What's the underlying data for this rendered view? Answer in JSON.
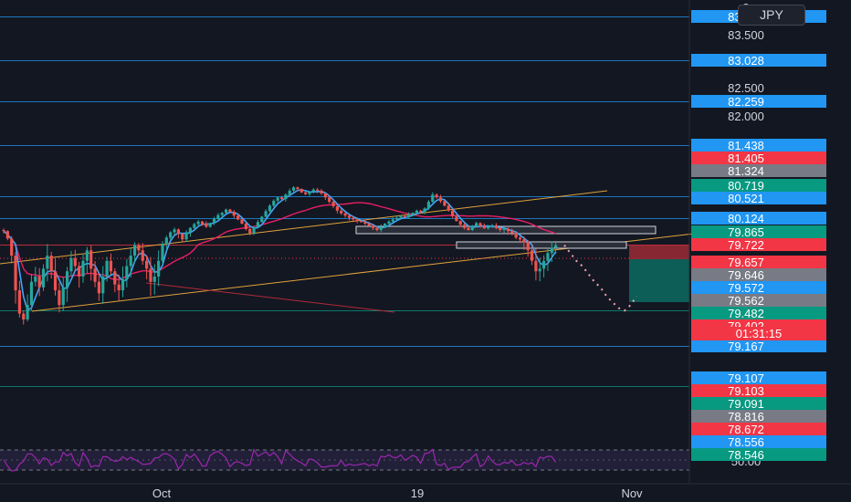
{
  "currency": "JPY",
  "countdown": "01:31:15",
  "price_axis": {
    "plain_labels": [
      {
        "value": 83.776,
        "text": "8"
      },
      {
        "value": 83.5,
        "text": "83.500"
      },
      {
        "value": 82.5,
        "text": "82.500"
      },
      {
        "value": 82.0,
        "text": "82.000"
      }
    ],
    "tags": [
      {
        "value": 83.776,
        "text": "83.776",
        "color": "#2196f3",
        "line": true
      },
      {
        "value": 83.028,
        "text": "83.028",
        "color": "#2196f3",
        "line": true
      },
      {
        "value": 82.259,
        "text": "82.259",
        "color": "#2196f3",
        "line": true
      },
      {
        "value": 81.438,
        "text": "81.438",
        "color": "#2196f3",
        "line": true
      },
      {
        "value": 81.405,
        "text": "81.405",
        "color": "#f23645",
        "line": false
      },
      {
        "value": 81.324,
        "text": "81.324",
        "color": "#787b86",
        "line": false
      },
      {
        "value": 80.719,
        "text": "80.719",
        "color": "#089981",
        "line": false
      },
      {
        "value": 80.521,
        "text": "80.521",
        "color": "#2196f3",
        "line": true
      },
      {
        "value": 80.124,
        "text": "80.124",
        "color": "#2196f3",
        "line": true
      },
      {
        "value": 79.865,
        "text": "79.865",
        "color": "#089981",
        "line": false
      },
      {
        "value": 79.722,
        "text": "79.722",
        "color": "#f23645",
        "line": true
      },
      {
        "value": 79.657,
        "text": "79.657",
        "color": "#f23645",
        "line": false
      },
      {
        "value": 79.646,
        "text": "79.646",
        "color": "#787b86",
        "line": false
      },
      {
        "value": 79.572,
        "text": "79.572",
        "color": "#2196f3",
        "line": false
      },
      {
        "value": 79.562,
        "text": "79.562",
        "color": "#787b86",
        "line": false
      },
      {
        "value": 79.482,
        "text": "79.482",
        "color": "#089981",
        "line": true
      },
      {
        "value": 79.402,
        "text": "79.402",
        "color": "#f23645",
        "line": false
      },
      {
        "value": 79.167,
        "text": "79.167",
        "color": "#2196f3",
        "line": true
      },
      {
        "value": 79.107,
        "text": "79.107",
        "color": "#2196f3",
        "line": false
      },
      {
        "value": 79.103,
        "text": "79.103",
        "color": "#f23645",
        "line": false
      },
      {
        "value": 79.091,
        "text": "79.091",
        "color": "#089981",
        "line": true
      },
      {
        "value": 78.816,
        "text": "78.816",
        "color": "#787b86",
        "line": false
      },
      {
        "value": 78.672,
        "text": "78.672",
        "color": "#f23645",
        "line": false
      },
      {
        "value": 78.556,
        "text": "78.556",
        "color": "#2196f3",
        "line": false
      },
      {
        "value": 78.546,
        "text": "78.546",
        "color": "#089981",
        "line": false
      }
    ]
  },
  "time_axis": [
    "Oct",
    "19",
    "Nov"
  ],
  "rsi": {
    "level_label": "50.00"
  },
  "chart_data": {
    "type": "candlestick",
    "symbol_currency": "JPY",
    "x_ticks": [
      "Oct",
      "19",
      "Nov"
    ],
    "ylim": [
      78.5,
      83.8
    ],
    "grid": false,
    "closes": [
      79.88,
      79.79,
      79.68,
      79.55,
      79.46,
      79.42,
      79.5,
      79.58,
      79.6,
      79.56,
      79.63,
      79.68,
      79.62,
      79.55,
      79.5,
      79.56,
      79.62,
      79.67,
      79.64,
      79.6,
      79.66,
      79.7,
      79.63,
      79.58,
      79.54,
      79.6,
      79.66,
      79.62,
      79.57,
      79.55,
      79.59,
      79.64,
      79.68,
      79.72,
      79.7,
      79.66,
      79.63,
      79.58,
      79.6,
      79.66,
      79.73,
      79.8,
      79.86,
      79.91,
      79.84,
      79.78,
      79.86,
      79.94,
      80.01,
      80.06,
      80.02,
      79.96,
      80.03,
      80.11,
      80.18,
      80.22,
      80.28,
      80.24,
      80.17,
      80.1,
      80.02,
      79.92,
      79.85,
      79.95,
      80.05,
      80.15,
      80.25,
      80.35,
      80.44,
      80.5,
      80.47,
      80.55,
      80.62,
      80.68,
      80.65,
      80.59,
      80.56,
      80.6,
      80.64,
      80.62,
      80.57,
      80.5,
      80.42,
      80.34,
      80.26,
      80.21,
      80.17,
      80.13,
      80.1,
      80.07,
      80.05,
      80.02,
      79.98,
      79.94,
      79.9,
      79.96,
      80.02,
      80.06,
      80.1,
      80.13,
      80.16,
      80.14,
      80.18,
      80.22,
      80.26,
      80.24,
      80.3,
      80.42,
      80.55,
      80.5,
      80.43,
      80.35,
      80.26,
      80.16,
      80.07,
      80.0,
      79.94,
      79.9,
      79.97,
      80.03,
      79.98,
      79.93,
      79.96,
      79.99,
      79.94,
      79.9,
      79.92,
      79.88,
      79.85,
      79.8,
      79.78,
      79.75,
      79.7,
      79.66,
      79.62,
      79.63,
      79.66,
      79.69,
      79.71,
      79.72
    ],
    "projection": [
      79.72,
      79.69,
      79.66,
      79.64,
      79.61,
      79.58,
      79.56,
      79.53,
      79.51,
      79.49,
      79.48,
      79.5,
      79.53
    ],
    "moving_averages": [
      "blue",
      "magenta"
    ],
    "rsi_level": 50,
    "countdown": "01:31:15"
  }
}
